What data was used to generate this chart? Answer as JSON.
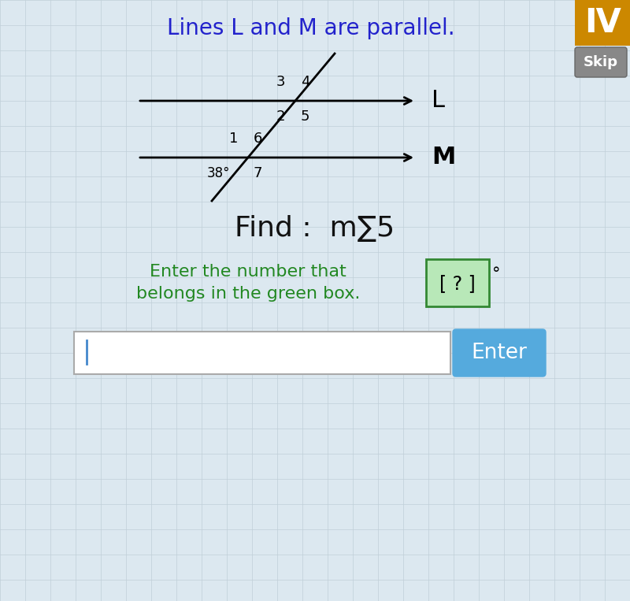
{
  "title": "Lines L and M are parallel.",
  "title_color": "#2222cc",
  "title_fontsize": 20,
  "bg_color": "#dce8f0",
  "grid_color": "#c0cfd8",
  "find_text": "Find :  m∑5",
  "find_fontsize": 26,
  "find_color": "#111111",
  "instruction_line1": "Enter the number that",
  "instruction_line2": "belongs in the green box.",
  "instruction_color": "#228822",
  "instruction_fontsize": 16,
  "green_box_color": "#b8e8b8",
  "green_border_color": "#338833",
  "angle_label": "38°",
  "line_L_label": "L",
  "line_M_label": "M",
  "enter_button_color": "#55aadd",
  "enter_button_text": "Enter",
  "enter_button_textcolor": "#ffffff",
  "input_box_color": "#ffffff",
  "input_cursor_color": "#4488cc",
  "skip_button_color": "#888888",
  "skip_button_text": "Skip",
  "corner_color": "#cc8800",
  "degree_symbol": "°"
}
